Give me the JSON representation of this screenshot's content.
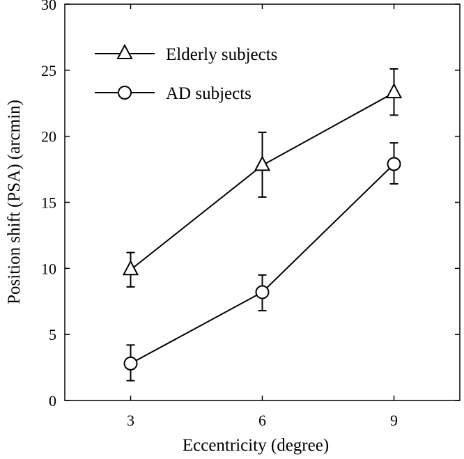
{
  "chart_data": {
    "type": "line",
    "title": "",
    "xlabel": "Eccentricity (degree)",
    "ylabel": "Position shift (PSA) (arcmin)",
    "x": [
      3,
      6,
      9
    ],
    "xticks": [
      "3",
      "6",
      "9"
    ],
    "xlim": [
      1.5,
      10.5
    ],
    "ylim": [
      0,
      30
    ],
    "yticks": [
      "0",
      "5",
      "10",
      "15",
      "20",
      "25",
      "30"
    ],
    "grid": false,
    "legend_position": "top-left",
    "series": [
      {
        "name": "Elderly subjects",
        "marker": "triangle",
        "values": [
          9.9,
          17.8,
          23.3
        ],
        "err_low": [
          8.6,
          15.4,
          21.6
        ],
        "err_high": [
          11.2,
          20.3,
          25.1
        ]
      },
      {
        "name": "AD subjects",
        "marker": "circle",
        "values": [
          2.8,
          8.2,
          17.9
        ],
        "err_low": [
          1.5,
          6.8,
          16.4
        ],
        "err_high": [
          4.2,
          9.5,
          19.5
        ]
      }
    ],
    "colors": {
      "line": "#000000",
      "background": "#ffffff"
    }
  }
}
